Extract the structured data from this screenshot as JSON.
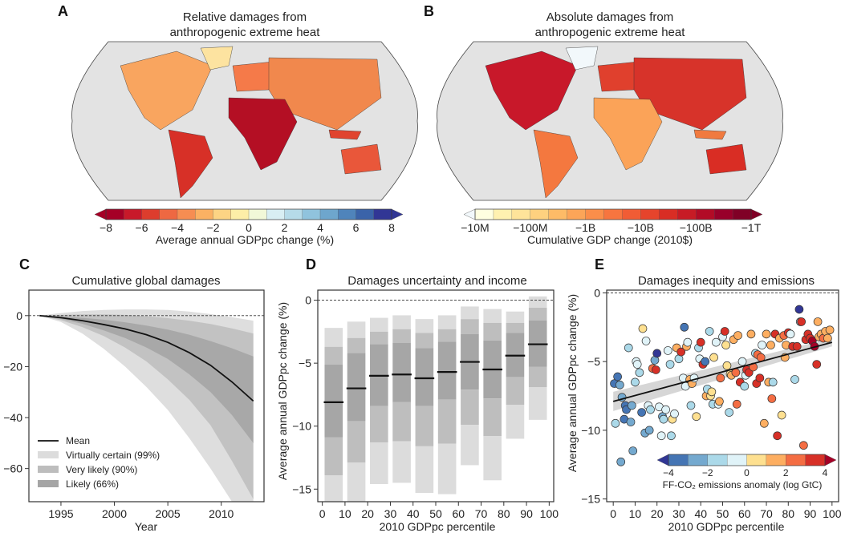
{
  "panels": {
    "a": {
      "label": "A",
      "title_line1": "Relative damages from",
      "title_line2": "anthropogenic extreme heat",
      "colorbar_label": "Average annual GDPpc change (%)",
      "colorbar_ticks": [
        "−8",
        "−6",
        "−4",
        "−2",
        "0",
        "2",
        "4",
        "6",
        "8"
      ],
      "colorbar_colors": [
        "#a50026",
        "#c8192a",
        "#dd3d2d",
        "#ee6842",
        "#f68d52",
        "#fbb163",
        "#fdd484",
        "#fdeea7",
        "#f1f8d8",
        "#d8eef3",
        "#b6dbe9",
        "#90c3dd",
        "#6ea6cd",
        "#4f84bb",
        "#3a63a9",
        "#313695"
      ]
    },
    "b": {
      "label": "B",
      "title_line1": "Absolute damages from",
      "title_line2": "anthropogenic extreme heat",
      "colorbar_label": "Cumulative GDP change (2010$)",
      "colorbar_ticks": [
        "−10M",
        "−100M",
        "−1B",
        "−10B",
        "−100B",
        "−1T"
      ],
      "colorbar_colors": [
        "#ffffe0",
        "#fff1b0",
        "#fee49a",
        "#fed17f",
        "#fdbb67",
        "#fca558",
        "#fb8e4a",
        "#f7753f",
        "#f15c35",
        "#e6442c",
        "#d92d24",
        "#c71b25",
        "#b20b26",
        "#98002a",
        "#800026"
      ],
      "underflow_color": "#f2f8fb"
    },
    "c": {
      "label": "C",
      "title": "Cumulative global damages",
      "xlabel": "Year",
      "legend": [
        "Mean",
        "Virtually certain (99%)",
        "Very likely (90%)",
        "Likely (66%)"
      ]
    },
    "d": {
      "label": "D",
      "title": "Damages uncertainty and income",
      "xlabel": "2010 GDPpc percentile",
      "ylabel": "Average annual GDPpc change (%)"
    },
    "e": {
      "label": "E",
      "title": "Damages inequity and emissions",
      "xlabel": "2010 GDPpc percentile",
      "ylabel": "Average annual GDPpc change (%)",
      "colorbar_label": "FF-CO₂ emissions anomaly (log GtC)",
      "colorbar_ticks": [
        "−4",
        "−2",
        "0",
        "2",
        "4"
      ],
      "colorbar_colors": [
        "#4575b4",
        "#74a9cf",
        "#abd9e9",
        "#e0f3f8",
        "#fee090",
        "#fdae61",
        "#f46d43",
        "#d73027"
      ],
      "colorbar_ends": [
        "#313695",
        "#a50026"
      ]
    }
  },
  "chart_data": [
    {
      "type": "area",
      "title": "Cumulative global damages",
      "xlabel": "Year",
      "ylabel": "",
      "xlim": [
        1992,
        2014
      ],
      "ylim": [
        -73,
        10
      ],
      "xticks": [
        1995,
        2000,
        2005,
        2010
      ],
      "yticks": [
        0,
        -20,
        -40,
        -60
      ],
      "reference_line": 0,
      "x": [
        1993,
        1995,
        1997,
        1999,
        2001,
        2003,
        2005,
        2007,
        2009,
        2011,
        2013
      ],
      "series": [
        {
          "name": "Mean",
          "values": [
            0,
            -0.8,
            -2.0,
            -3.5,
            -5.2,
            -7.5,
            -10.5,
            -14.5,
            -19.5,
            -26,
            -33.5
          ]
        },
        {
          "name": "Virtually certain (99%) lower",
          "values": [
            0,
            -2.5,
            -7,
            -13,
            -20,
            -28,
            -37,
            -48,
            -60,
            -74,
            -90
          ]
        },
        {
          "name": "Virtually certain (99%) upper",
          "values": [
            0,
            1.0,
            1.8,
            2.2,
            2.4,
            2.4,
            2.2,
            1.6,
            0.6,
            -0.6,
            -2.0
          ]
        },
        {
          "name": "Very likely (90%) lower",
          "values": [
            0,
            -1.8,
            -4.5,
            -8,
            -12.5,
            -18,
            -25,
            -33,
            -43,
            -57,
            -72
          ]
        },
        {
          "name": "Very likely (90%) upper",
          "values": [
            0,
            0.3,
            0.5,
            0.5,
            0.3,
            -0.2,
            -1.0,
            -2.0,
            -3.3,
            -5.0,
            -7.0
          ]
        },
        {
          "name": "Likely (66%) lower",
          "values": [
            0,
            -1.3,
            -3.2,
            -5.8,
            -8.8,
            -12.5,
            -17,
            -23,
            -30,
            -39,
            -50
          ]
        },
        {
          "name": "Likely (66%) upper",
          "values": [
            0,
            -0.3,
            -0.9,
            -1.6,
            -2.6,
            -3.9,
            -5.5,
            -7.5,
            -10,
            -12.8,
            -16
          ]
        }
      ],
      "legend": "bottom-left"
    },
    {
      "type": "bar",
      "title": "Damages uncertainty and income",
      "xlabel": "2010 GDPpc percentile",
      "ylabel": "Average annual GDPpc change (%)",
      "xlim": [
        -2,
        102
      ],
      "ylim": [
        -16,
        0.8
      ],
      "xticks": [
        0,
        10,
        20,
        30,
        40,
        50,
        60,
        70,
        80,
        90,
        100
      ],
      "yticks": [
        0,
        -5,
        -10,
        -15
      ],
      "reference_line": 0,
      "categories": [
        "0-10",
        "10-20",
        "20-30",
        "30-40",
        "40-50",
        "50-60",
        "60-70",
        "70-80",
        "80-90",
        "90-100"
      ],
      "series": [
        {
          "name": "Mean",
          "values": [
            -8.1,
            -7.0,
            -6.0,
            -5.9,
            -6.2,
            -5.7,
            -4.9,
            -5.5,
            -4.4,
            -3.5
          ]
        },
        {
          "name": "99% upper",
          "values": [
            -2.2,
            -1.7,
            -1.4,
            -1.2,
            -1.5,
            -1.2,
            -0.5,
            -0.7,
            -0.9,
            0.3
          ]
        },
        {
          "name": "90% upper",
          "values": [
            -3.7,
            -3.0,
            -2.5,
            -2.3,
            -2.6,
            -2.3,
            -1.5,
            -1.8,
            -1.8,
            -0.6
          ]
        },
        {
          "name": "66% upper",
          "values": [
            -5.1,
            -4.2,
            -3.5,
            -3.4,
            -3.8,
            -3.3,
            -2.7,
            -3.2,
            -2.6,
            -1.6
          ]
        },
        {
          "name": "66% lower",
          "values": [
            -10.9,
            -9.6,
            -8.4,
            -8.1,
            -8.4,
            -7.9,
            -7.1,
            -7.8,
            -6.1,
            -5.3
          ]
        },
        {
          "name": "90% lower",
          "values": [
            -13.9,
            -12.9,
            -11.3,
            -11.2,
            -11.6,
            -11.4,
            -9.9,
            -10.8,
            -8.3,
            -6.9
          ]
        },
        {
          "name": "99% lower",
          "values": [
            -17,
            -17,
            -14.6,
            -14.5,
            -15.3,
            -15.4,
            -13.1,
            -14.3,
            -11.0,
            -9.5
          ]
        }
      ]
    },
    {
      "type": "scatter",
      "title": "Damages inequity and emissions",
      "xlabel": "2010 GDPpc percentile",
      "ylabel": "Average annual GDPpc change (%)",
      "xlim": [
        -3,
        103
      ],
      "ylim": [
        -15.2,
        0.2
      ],
      "xticks": [
        0,
        10,
        20,
        30,
        40,
        50,
        60,
        70,
        80,
        90,
        100
      ],
      "yticks": [
        0,
        -5,
        -10,
        -15
      ],
      "reference_line": 0,
      "color_label": "FF-CO₂ emissions anomaly (log GtC)",
      "color_range": [
        -4,
        4
      ],
      "fit_line": {
        "x": [
          0,
          100
        ],
        "y": [
          -7.9,
          -3.6
        ],
        "band_halfwidth": [
          0.7,
          0.3
        ]
      },
      "points": [
        [
          0.5,
          -6.6,
          -3.5
        ],
        [
          1,
          -9.5,
          -1.5
        ],
        [
          2,
          -6.1,
          -3.2
        ],
        [
          3,
          -6.7,
          -2.5
        ],
        [
          3.5,
          -12.3,
          -2.8
        ],
        [
          4,
          -7.6,
          -2.2
        ],
        [
          5,
          -9.2,
          -3.5
        ],
        [
          5.5,
          -8.2,
          -3.1
        ],
        [
          6,
          -8.5,
          -3.3
        ],
        [
          7,
          -4.0,
          -1.5
        ],
        [
          8,
          -9.4,
          -2.6
        ],
        [
          8.5,
          -8.2,
          -2.2
        ],
        [
          9,
          -11.5,
          -2.5
        ],
        [
          10,
          -6.5,
          -1.3
        ],
        [
          10.5,
          -5.0,
          -0.5
        ],
        [
          11,
          -5.2,
          -0.3
        ],
        [
          12,
          -5.8,
          -1.6
        ],
        [
          13,
          -8.7,
          -3.2
        ],
        [
          13.5,
          -2.6,
          0.8
        ],
        [
          14.5,
          -10.2,
          -3.0
        ],
        [
          15,
          -3.5,
          -0.5
        ],
        [
          16,
          -8.2,
          -0.4
        ],
        [
          16.5,
          -10.0,
          -2.3
        ],
        [
          17,
          -8.5,
          -1.2
        ],
        [
          18,
          -5.5,
          2.8
        ],
        [
          19,
          -4.9,
          -2.5
        ],
        [
          19.5,
          -5.6,
          3.8
        ],
        [
          20,
          -4.4,
          -4.0
        ],
        [
          21,
          -8.3,
          -0.4
        ],
        [
          22,
          -10.4,
          -0.2
        ],
        [
          22.5,
          -9.0,
          -3.0
        ],
        [
          23,
          -9.2,
          -1.3
        ],
        [
          24,
          -8.5,
          -0.8
        ],
        [
          25,
          -4.2,
          -0.7
        ],
        [
          26,
          -5.2,
          -1.8
        ],
        [
          26.5,
          -10.4,
          -1.5
        ],
        [
          27,
          -9.2,
          0.5
        ],
        [
          28,
          -8.8,
          -0.6
        ],
        [
          29,
          -4.0,
          1.5
        ],
        [
          30,
          -4.8,
          -1.2
        ],
        [
          31,
          -4.3,
          3.8
        ],
        [
          32,
          -6.2,
          -0.8
        ],
        [
          32.5,
          -2.5,
          -3.2
        ],
        [
          33,
          -6.8,
          -0.3
        ],
        [
          33.5,
          -3.9,
          1.5
        ],
        [
          34,
          -3.6,
          -0.4
        ],
        [
          35,
          -6.3,
          1.6
        ],
        [
          35.5,
          -8.2,
          -1.5
        ],
        [
          36,
          -6.6,
          1.8
        ],
        [
          37,
          -6.2,
          -0.7
        ],
        [
          38,
          -9.0,
          0.8
        ],
        [
          39,
          -4.0,
          -1.3
        ],
        [
          39.5,
          -4.8,
          -0.6
        ],
        [
          40,
          -3.6,
          3.3
        ],
        [
          41,
          -5.2,
          3.2
        ],
        [
          42,
          -5.0,
          -3.2
        ],
        [
          42.5,
          -7.5,
          1.6
        ],
        [
          43,
          -7.0,
          -1.8
        ],
        [
          44,
          -2.8,
          -1.3
        ],
        [
          44.5,
          -7.5,
          0.6
        ],
        [
          45,
          -7.2,
          0.8
        ],
        [
          45.5,
          -8.1,
          -2.0
        ],
        [
          46,
          -4.7,
          0.4
        ],
        [
          47,
          -3.6,
          -0.5
        ],
        [
          48,
          -8.1,
          -1.0
        ],
        [
          48.5,
          -7.9,
          1.0
        ],
        [
          49,
          -6.2,
          2.8
        ],
        [
          50,
          -3.2,
          -0.8
        ],
        [
          51,
          -2.8,
          3.8
        ],
        [
          51.5,
          -3.8,
          0.6
        ],
        [
          52,
          -5.3,
          0.4
        ],
        [
          53,
          -8.7,
          -1.5
        ],
        [
          53.5,
          -5.9,
          0.8
        ],
        [
          54,
          -6.0,
          1.8
        ],
        [
          55,
          -3.4,
          1.6
        ],
        [
          56,
          -5.8,
          2.6
        ],
        [
          56.5,
          -8.1,
          2.6
        ],
        [
          57,
          -3.1,
          1.6
        ],
        [
          58,
          -6.5,
          3.2
        ],
        [
          59,
          -5.0,
          -0.5
        ],
        [
          60,
          -6.8,
          -1.8
        ],
        [
          60.5,
          -6.0,
          -1.0
        ],
        [
          61,
          -5.6,
          3.2
        ],
        [
          62,
          -5.8,
          3.2
        ],
        [
          63,
          -3.0,
          1.5
        ],
        [
          64,
          -5.4,
          2.8
        ],
        [
          65,
          -4.4,
          -1.3
        ],
        [
          65.5,
          -6.6,
          3.2
        ],
        [
          66,
          -4.5,
          2.6
        ],
        [
          67,
          -6.2,
          3.2
        ],
        [
          67.5,
          -4.7,
          2.0
        ],
        [
          68,
          -3.8,
          -1.0
        ],
        [
          69,
          -9.5,
          1.6
        ],
        [
          70,
          -3.0,
          1.6
        ],
        [
          71,
          -6.5,
          1.6
        ],
        [
          72,
          -3.8,
          1.8
        ],
        [
          72.5,
          -7.7,
          2.8
        ],
        [
          73,
          -6.5,
          -1.3
        ],
        [
          74,
          -3.0,
          3.4
        ],
        [
          75,
          -10.4,
          3.6
        ],
        [
          76,
          -3.3,
          1.6
        ],
        [
          77,
          -8.9,
          0.8
        ],
        [
          78,
          -3.1,
          2.0
        ],
        [
          78.5,
          -4.7,
          1.6
        ],
        [
          79,
          -3.8,
          1.6
        ],
        [
          80,
          -2.9,
          3.6
        ],
        [
          81,
          -3.0,
          -0.4
        ],
        [
          82,
          -3.9,
          3.4
        ],
        [
          83,
          -6.3,
          -1.5
        ],
        [
          84,
          -3.9,
          3.6
        ],
        [
          85,
          -1.2,
          -4.0
        ],
        [
          85.5,
          -2.1,
          -1.3
        ],
        [
          86,
          -2.1,
          3.6
        ],
        [
          87,
          -11.1,
          2.8
        ],
        [
          88,
          -3.4,
          3.2
        ],
        [
          89,
          -3.0,
          3.4
        ],
        [
          90,
          -3.3,
          3.8
        ],
        [
          91,
          -3.5,
          4.0
        ],
        [
          92,
          -3.9,
          4.0
        ],
        [
          93,
          -5.2,
          3.4
        ],
        [
          93.5,
          -2.1,
          1.8
        ],
        [
          94,
          -3.2,
          1.6
        ],
        [
          95,
          -3.0,
          1.8
        ],
        [
          96,
          -3.3,
          2.4
        ],
        [
          97,
          -2.8,
          1.6
        ],
        [
          98,
          -3.3,
          1.8
        ],
        [
          99,
          -2.7,
          1.6
        ]
      ]
    }
  ]
}
